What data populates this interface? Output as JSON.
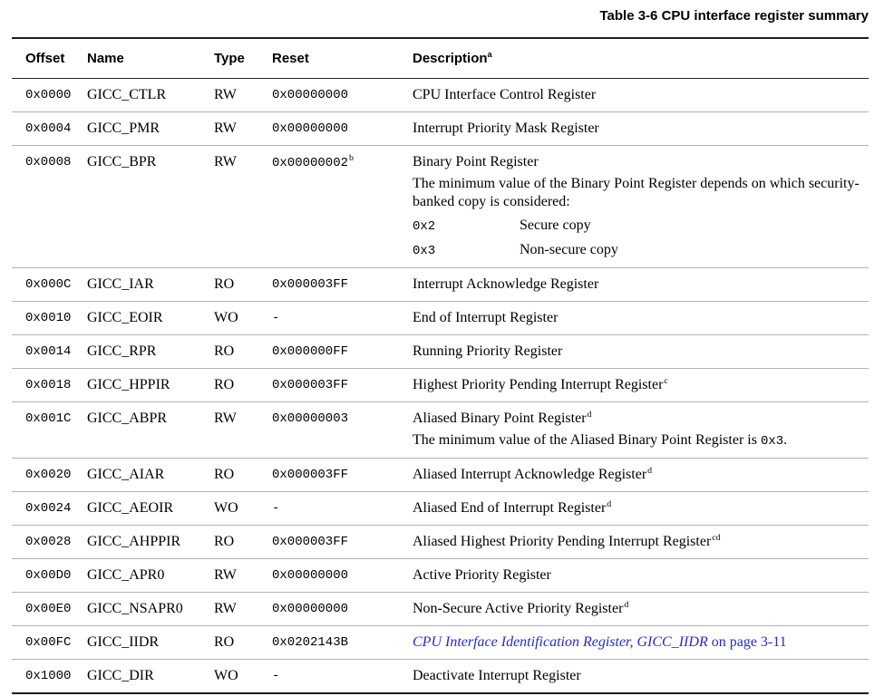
{
  "page": {
    "title": "Table 3-6 CPU interface register summary"
  },
  "colors": {
    "link_blue": "#2a2ac8",
    "rule_dark": "#1e1e1e",
    "rule_light": "#b3b3b3",
    "text": "#000000"
  },
  "table": {
    "columns": {
      "offset": "Offset",
      "name": "Name",
      "type": "Type",
      "reset": "Reset",
      "description": "Description",
      "description_sup": "a"
    },
    "rows": [
      {
        "offset": "0x0000",
        "name": "GICC_CTLR",
        "type": "RW",
        "reset": "0x00000000",
        "desc": "CPU Interface Control Register"
      },
      {
        "offset": "0x0004",
        "name": "GICC_PMR",
        "type": "RW",
        "reset": "0x00000000",
        "desc": "Interrupt Priority Mask Register"
      },
      {
        "offset": "0x0008",
        "name": "GICC_BPR",
        "type": "RW",
        "reset": "0x00000002",
        "reset_sup": "b",
        "desc": "Binary Point Register",
        "note": "The minimum value of the Binary Point Register depends on which security-banked copy is considered:",
        "options": [
          {
            "value": "0x2",
            "label": "Secure copy"
          },
          {
            "value": "0x3",
            "label": "Non-secure copy"
          }
        ]
      },
      {
        "offset": "0x000C",
        "name": "GICC_IAR",
        "type": "RO",
        "reset": "0x000003FF",
        "desc": "Interrupt Acknowledge Register"
      },
      {
        "offset": "0x0010",
        "name": "GICC_EOIR",
        "type": "WO",
        "reset": "-",
        "desc": "End of Interrupt Register"
      },
      {
        "offset": "0x0014",
        "name": "GICC_RPR",
        "type": "RO",
        "reset": "0x000000FF",
        "desc": "Running Priority Register"
      },
      {
        "offset": "0x0018",
        "name": "GICC_HPPIR",
        "type": "RO",
        "reset": "0x000003FF",
        "desc": "Highest Priority Pending Interrupt Register",
        "desc_sup": "c"
      },
      {
        "offset": "0x001C",
        "name": "GICC_ABPR",
        "type": "RW",
        "reset": "0x00000003",
        "desc": "Aliased Binary Point Register",
        "desc_sup": "d",
        "note_prefix": "The minimum value of the Aliased Binary Point Register is ",
        "note_code": "0x3",
        "note_suffix": "."
      },
      {
        "offset": "0x0020",
        "name": "GICC_AIAR",
        "type": "RO",
        "reset": "0x000003FF",
        "desc": "Aliased Interrupt Acknowledge Register",
        "desc_sup": "d"
      },
      {
        "offset": "0x0024",
        "name": "GICC_AEOIR",
        "type": "WO",
        "reset": "-",
        "desc": "Aliased End of Interrupt Register",
        "desc_sup": "d"
      },
      {
        "offset": "0x0028",
        "name": "GICC_AHPPIR",
        "type": "RO",
        "reset": "0x000003FF",
        "desc": "Aliased Highest Priority Pending Interrupt Register",
        "desc_sup": "cd"
      },
      {
        "offset": "0x00D0",
        "name": "GICC_APR0",
        "type": "RW",
        "reset": "0x00000000",
        "desc": "Active Priority Register"
      },
      {
        "offset": "0x00E0",
        "name": "GICC_NSAPR0",
        "type": "RW",
        "reset": "0x00000000",
        "desc": "Non-Secure Active Priority Register",
        "desc_sup": "d"
      },
      {
        "offset": "0x00FC",
        "name": "GICC_IIDR",
        "type": "RO",
        "reset": "0x0202143B",
        "link_italic": "CPU Interface Identification Register, GICC_IIDR",
        "link_rest": " on page 3-11"
      },
      {
        "offset": "0x1000",
        "name": "GICC_DIR",
        "type": "WO",
        "reset": "-",
        "desc": "Deactivate Interrupt Register"
      }
    ]
  }
}
